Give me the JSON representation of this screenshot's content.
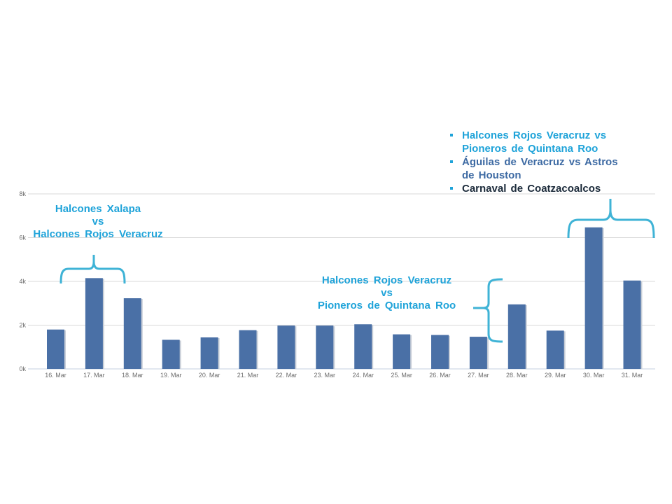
{
  "chart_data": {
    "type": "bar",
    "categories": [
      "16. Mar",
      "17. Mar",
      "18. Mar",
      "19. Mar",
      "20. Mar",
      "21. Mar",
      "22. Mar",
      "23. Mar",
      "24. Mar",
      "25. Mar",
      "26. Mar",
      "27. Mar",
      "28. Mar",
      "29. Mar",
      "30. Mar",
      "31. Mar"
    ],
    "values": [
      1800,
      4150,
      3230,
      1330,
      1440,
      1770,
      1980,
      1980,
      2040,
      1580,
      1550,
      1470,
      2950,
      1750,
      6470,
      4040
    ],
    "y_ticks": [
      "0k",
      "2k",
      "4k",
      "6k",
      "8k"
    ],
    "ylim": [
      0,
      8000
    ],
    "grid": true,
    "bar_color": "#4a70a6"
  },
  "annotations": {
    "left": {
      "lines": [
        "Halcones  Xalapa",
        "vs",
        "Halcones  Rojos Veracruz"
      ]
    },
    "middle": {
      "lines": [
        "Halcones  Rojos Veracruz",
        "vs",
        "Pioneros  de Quintana  Roo"
      ]
    },
    "right_list": [
      {
        "lines": [
          "Halcones  Rojos Veracruz  vs",
          "Pioneros  de Quintana  Roo"
        ],
        "color": "#1fa3d9"
      },
      {
        "lines": [
          "Águilas  de  Veracruz vs Astros",
          "de Houston"
        ],
        "color": "#3d6aa3"
      },
      {
        "lines": [
          "Carnaval de Coatzacoalcos"
        ],
        "color": "#1b2a3a"
      }
    ],
    "bracket_color": "#3fb3d6"
  }
}
